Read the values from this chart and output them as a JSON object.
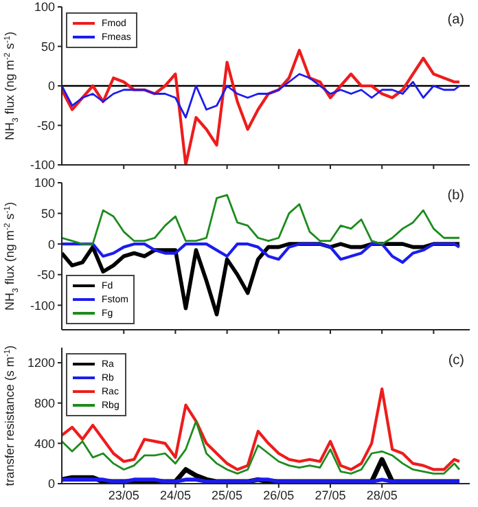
{
  "chart_data": [
    {
      "type": "line",
      "ylabel": "NH$_{3}$ flux (ng m$^{-2}$ s$^{-1}$)",
      "annotations": [
        "(a)"
      ],
      "legend": "top left",
      "tick_labels": "y",
      "x": [
        "--05-21T19:12",
        "--05-22T00:00",
        "--05-22T04:48",
        "--05-22T09:36",
        "--05-22T14:24",
        "--05-22T19:12",
        "--05-23T00:00",
        "--05-23T04:48",
        "--05-23T09:36",
        "--05-23T14:24",
        "--05-23T19:12",
        "--05-24T00:00",
        "--05-24T04:48",
        "--05-24T09:36",
        "--05-24T14:24",
        "--05-24T19:12",
        "--05-25T00:00",
        "--05-25T04:48",
        "--05-25T09:36",
        "--05-25T14:24",
        "--05-25T19:12",
        "--05-26T00:00",
        "--05-26T04:48",
        "--05-26T09:36",
        "--05-26T14:24",
        "--05-26T19:12",
        "--05-27T00:00",
        "--05-27T04:48",
        "--05-27T09:36",
        "--05-27T14:24",
        "--05-27T19:12",
        "--05-28T00:00",
        "--05-28T04:48",
        "--05-28T09:36",
        "--05-28T14:24",
        "--05-28T19:12",
        "--05-29T00:00",
        "--05-29T04:48",
        "--05-29T09:36",
        "--05-29T12:00"
      ],
      "xlim": [
        "--05-21T19:12",
        "--05-29T16:48"
      ],
      "xticks": [
        {
          "value": "--05-23",
          "label": null
        },
        {
          "value": "--05-24",
          "label": null
        },
        {
          "value": "--05-25",
          "label": null
        },
        {
          "value": "--05-26",
          "label": null
        },
        {
          "value": "--05-27",
          "label": null
        },
        {
          "value": "--05-28",
          "label": null
        },
        {
          "value": "--05-29",
          "label": null
        }
      ],
      "ylim": [
        -100,
        100
      ],
      "yticks": [
        -100,
        -50,
        0,
        50,
        100
      ],
      "ref_lines": [
        {
          "axis": "y",
          "value": 0,
          "color": "#000000"
        }
      ],
      "series": [
        {
          "name": "Fmod",
          "color": "#ee1c1c",
          "values": [
            -5,
            -30,
            -15,
            0,
            -20,
            10,
            5,
            -5,
            -5,
            -10,
            0,
            15,
            -100,
            -40,
            -55,
            -75,
            30,
            -20,
            -55,
            -30,
            -10,
            -5,
            10,
            45,
            10,
            5,
            -15,
            0,
            15,
            0,
            0,
            -10,
            -15,
            -5,
            15,
            35,
            15,
            10,
            5,
            5
          ]
        },
        {
          "name": "Fmeas",
          "color": "#1c1cee",
          "values": [
            0,
            -25,
            -15,
            -10,
            -20,
            -10,
            -5,
            -5,
            -5,
            -10,
            -10,
            -15,
            -40,
            0,
            -30,
            -25,
            0,
            -10,
            -15,
            -10,
            -10,
            -5,
            5,
            15,
            10,
            0,
            -10,
            -5,
            -10,
            -5,
            -15,
            -5,
            -5,
            -10,
            5,
            -15,
            0,
            -5,
            -5,
            0
          ]
        }
      ]
    },
    {
      "type": "line",
      "ylabel": "NH$_{3}$ flux (ng m$^{-2}$ s$^{-1}$)",
      "annotations": [
        "(b)"
      ],
      "legend": "bottom left",
      "tick_labels": "y",
      "x": [
        "--05-21T19:12",
        "--05-22T00:00",
        "--05-22T04:48",
        "--05-22T09:36",
        "--05-22T14:24",
        "--05-22T19:12",
        "--05-23T00:00",
        "--05-23T04:48",
        "--05-23T09:36",
        "--05-23T14:24",
        "--05-23T19:12",
        "--05-24T00:00",
        "--05-24T04:48",
        "--05-24T09:36",
        "--05-24T14:24",
        "--05-24T19:12",
        "--05-25T00:00",
        "--05-25T04:48",
        "--05-25T09:36",
        "--05-25T14:24",
        "--05-25T19:12",
        "--05-26T00:00",
        "--05-26T04:48",
        "--05-26T09:36",
        "--05-26T14:24",
        "--05-26T19:12",
        "--05-27T00:00",
        "--05-27T04:48",
        "--05-27T09:36",
        "--05-27T14:24",
        "--05-27T19:12",
        "--05-28T00:00",
        "--05-28T04:48",
        "--05-28T09:36",
        "--05-28T14:24",
        "--05-28T19:12",
        "--05-29T00:00",
        "--05-29T04:48",
        "--05-29T09:36",
        "--05-29T12:00"
      ],
      "xlim": [
        "--05-21T19:12",
        "--05-29T16:48"
      ],
      "xticks": [
        {
          "value": "--05-23",
          "label": null
        },
        {
          "value": "--05-24",
          "label": null
        },
        {
          "value": "--05-25",
          "label": null
        },
        {
          "value": "--05-26",
          "label": null
        },
        {
          "value": "--05-27",
          "label": null
        },
        {
          "value": "--05-28",
          "label": null
        },
        {
          "value": "--05-29",
          "label": null
        }
      ],
      "ylim": [
        -140,
        100
      ],
      "yticks": [
        -100,
        -50,
        0,
        50,
        100
      ],
      "series": [
        {
          "name": "Fd",
          "color": "#000000",
          "values": [
            -15,
            -35,
            -30,
            -5,
            -45,
            -35,
            -20,
            -15,
            -20,
            -10,
            -10,
            -10,
            -105,
            -10,
            -60,
            -115,
            -25,
            -50,
            -80,
            -25,
            -5,
            -5,
            0,
            0,
            0,
            0,
            -5,
            0,
            -5,
            -5,
            0,
            0,
            0,
            0,
            -5,
            -5,
            0,
            0,
            0,
            0
          ]
        },
        {
          "name": "Fstom",
          "color": "#1c1cee",
          "values": [
            0,
            0,
            0,
            0,
            -20,
            -15,
            -5,
            0,
            0,
            -10,
            -15,
            -15,
            0,
            0,
            0,
            -10,
            -20,
            0,
            0,
            -5,
            -20,
            -25,
            -5,
            0,
            0,
            0,
            -5,
            -25,
            -20,
            -15,
            0,
            0,
            -20,
            -30,
            -15,
            -10,
            0,
            0,
            0,
            -5
          ]
        },
        {
          "name": "Fg",
          "color": "#1c8c1c",
          "values": [
            10,
            5,
            0,
            0,
            55,
            45,
            20,
            5,
            5,
            10,
            30,
            45,
            5,
            5,
            10,
            75,
            80,
            35,
            30,
            10,
            5,
            10,
            50,
            65,
            20,
            5,
            5,
            30,
            25,
            40,
            5,
            0,
            10,
            25,
            35,
            55,
            25,
            10,
            10,
            10
          ]
        }
      ]
    },
    {
      "type": "line",
      "ylabel": "transfer resistance (s m$^{-1}$)",
      "annotations": [
        "(c)"
      ],
      "legend": "top left",
      "x": [
        "--05-21T19:12",
        "--05-22T00:00",
        "--05-22T04:48",
        "--05-22T09:36",
        "--05-22T14:24",
        "--05-22T19:12",
        "--05-23T00:00",
        "--05-23T04:48",
        "--05-23T09:36",
        "--05-23T14:24",
        "--05-23T19:12",
        "--05-24T00:00",
        "--05-24T04:48",
        "--05-24T09:36",
        "--05-24T14:24",
        "--05-24T19:12",
        "--05-25T00:00",
        "--05-25T04:48",
        "--05-25T09:36",
        "--05-25T14:24",
        "--05-25T19:12",
        "--05-26T00:00",
        "--05-26T04:48",
        "--05-26T09:36",
        "--05-26T14:24",
        "--05-26T19:12",
        "--05-27T00:00",
        "--05-27T04:48",
        "--05-27T09:36",
        "--05-27T14:24",
        "--05-27T19:12",
        "--05-28T00:00",
        "--05-28T04:48",
        "--05-28T09:36",
        "--05-28T14:24",
        "--05-28T19:12",
        "--05-29T00:00",
        "--05-29T04:48",
        "--05-29T09:36",
        "--05-29T12:00"
      ],
      "xlim": [
        "--05-21T19:12",
        "--05-29T16:48"
      ],
      "xticks": [
        {
          "value": "--05-23",
          "label": "23/05"
        },
        {
          "value": "--05-24",
          "label": "24/05"
        },
        {
          "value": "--05-25",
          "label": "25/05"
        },
        {
          "value": "--05-26",
          "label": "26/05"
        },
        {
          "value": "--05-27",
          "label": "27/05"
        },
        {
          "value": "--05-28",
          "label": "28/05"
        }
      ],
      "ylim": [
        0,
        1350
      ],
      "yticks": [
        0,
        400,
        800,
        1200
      ],
      "series": [
        {
          "name": "Ra",
          "color": "#000000",
          "values": [
            40,
            60,
            60,
            60,
            20,
            20,
            20,
            20,
            20,
            20,
            20,
            20,
            140,
            80,
            40,
            20,
            20,
            20,
            20,
            40,
            20,
            20,
            20,
            20,
            20,
            20,
            20,
            20,
            20,
            20,
            20,
            240,
            20,
            20,
            20,
            20,
            20,
            20,
            20,
            20
          ]
        },
        {
          "name": "Rb",
          "color": "#1c1cee",
          "values": [
            40,
            40,
            40,
            40,
            40,
            20,
            20,
            40,
            40,
            40,
            20,
            20,
            40,
            40,
            20,
            20,
            20,
            20,
            20,
            40,
            40,
            20,
            20,
            20,
            20,
            20,
            20,
            20,
            20,
            20,
            20,
            40,
            20,
            20,
            20,
            20,
            20,
            20,
            20,
            20
          ]
        },
        {
          "name": "Rac",
          "color": "#ee1c1c",
          "values": [
            480,
            560,
            440,
            580,
            440,
            300,
            220,
            240,
            440,
            420,
            400,
            260,
            780,
            620,
            400,
            300,
            200,
            140,
            180,
            520,
            400,
            300,
            240,
            220,
            240,
            220,
            420,
            180,
            140,
            200,
            400,
            940,
            340,
            300,
            200,
            180,
            140,
            140,
            240,
            220
          ]
        },
        {
          "name": "Rbg",
          "color": "#1c8c1c",
          "values": [
            420,
            320,
            420,
            260,
            300,
            200,
            140,
            180,
            280,
            280,
            300,
            200,
            340,
            620,
            300,
            200,
            140,
            100,
            140,
            380,
            300,
            220,
            180,
            160,
            180,
            160,
            340,
            120,
            100,
            140,
            300,
            320,
            280,
            200,
            140,
            120,
            100,
            100,
            200,
            140
          ]
        }
      ]
    }
  ]
}
